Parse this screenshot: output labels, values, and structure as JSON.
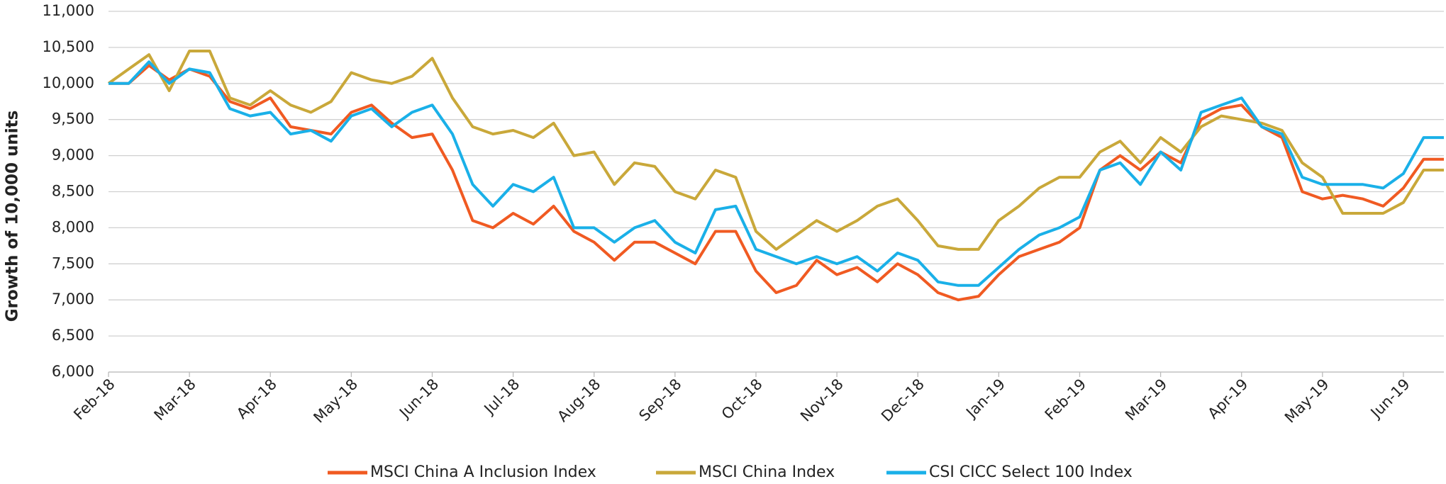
{
  "chart_data": {
    "type": "line",
    "y_label": "Growth of 10,000 units",
    "categories": [
      "Feb-18",
      null,
      null,
      null,
      "Mar-18",
      null,
      null,
      null,
      "Apr-18",
      null,
      null,
      null,
      "May-18",
      null,
      null,
      null,
      "Jun-18",
      null,
      null,
      null,
      "Jul-18",
      null,
      null,
      null,
      "Aug-18",
      null,
      null,
      null,
      "Sep-18",
      null,
      null,
      null,
      "Oct-18",
      null,
      null,
      null,
      "Nov-18",
      null,
      null,
      null,
      "Dec-18",
      null,
      null,
      null,
      "Jan-19",
      null,
      null,
      null,
      "Feb-19",
      null,
      null,
      null,
      "Mar-19",
      null,
      null,
      null,
      "Apr-19",
      null,
      null,
      null,
      "May-19",
      null,
      null,
      null,
      "Jun-19",
      null,
      null
    ],
    "series": [
      {
        "name": "MSCI China A Inclusion Index",
        "color": "#f05a22",
        "values": [
          10000,
          10000,
          10250,
          10050,
          10200,
          10100,
          9750,
          9650,
          9800,
          9400,
          9350,
          9300,
          9600,
          9700,
          9450,
          9250,
          9300,
          8800,
          8100,
          8000,
          8200,
          8050,
          8300,
          7950,
          7800,
          7550,
          7800,
          7800,
          7650,
          7500,
          7950,
          7950,
          7400,
          7100,
          7200,
          7550,
          7350,
          7450,
          7250,
          7500,
          7350,
          7100,
          7000,
          7050,
          7350,
          7600,
          7700,
          7800,
          8000,
          8800,
          9000,
          8800,
          9050,
          8900,
          9500,
          9650,
          9700,
          9400,
          9250,
          8500,
          8400,
          8450,
          8400,
          8300,
          8550,
          8950,
          8950
        ]
      },
      {
        "name": "MSCI China Index",
        "color": "#c9a83a",
        "values": [
          10000,
          10200,
          10400,
          9900,
          10450,
          10450,
          9800,
          9700,
          9900,
          9700,
          9600,
          9750,
          10150,
          10050,
          10000,
          10100,
          10350,
          9800,
          9400,
          9300,
          9350,
          9250,
          9450,
          9000,
          9050,
          8600,
          8900,
          8850,
          8500,
          8400,
          8800,
          8700,
          7950,
          7700,
          7900,
          8100,
          7950,
          8100,
          8300,
          8400,
          8100,
          7750,
          7700,
          7700,
          8100,
          8300,
          8550,
          8700,
          8700,
          9050,
          9200,
          8900,
          9250,
          9050,
          9400,
          9550,
          9500,
          9450,
          9350,
          8900,
          8700,
          8200,
          8200,
          8200,
          8350,
          8800,
          8800
        ]
      },
      {
        "name": "CSI CICC Select 100 Index",
        "color": "#1ab0e8",
        "values": [
          10000,
          10000,
          10300,
          10000,
          10200,
          10150,
          9650,
          9550,
          9600,
          9300,
          9350,
          9200,
          9550,
          9650,
          9400,
          9600,
          9700,
          9300,
          8600,
          8300,
          8600,
          8500,
          8700,
          8000,
          8000,
          7800,
          8000,
          8100,
          7800,
          7650,
          8250,
          8300,
          7700,
          7600,
          7500,
          7600,
          7500,
          7600,
          7400,
          7650,
          7550,
          7250,
          7200,
          7200,
          7450,
          7700,
          7900,
          8000,
          8150,
          8800,
          8900,
          8600,
          9050,
          8800,
          9600,
          9700,
          9800,
          9400,
          9300,
          8700,
          8600,
          8600,
          8600,
          8550,
          8750,
          9250,
          9250
        ]
      }
    ],
    "ylim": [
      6000,
      11000
    ],
    "yticks": [
      {
        "value": 6000,
        "label": "6,000"
      },
      {
        "value": 6500,
        "label": "6,500"
      },
      {
        "value": 7000,
        "label": "7,000"
      },
      {
        "value": 7500,
        "label": "7,500"
      },
      {
        "value": 8000,
        "label": "8,000"
      },
      {
        "value": 8500,
        "label": "8,500"
      },
      {
        "value": 9000,
        "label": "9,000"
      },
      {
        "value": 9500,
        "label": "9,500"
      },
      {
        "value": 10000,
        "label": "10,000"
      },
      {
        "value": 10500,
        "label": "10,500"
      },
      {
        "value": 11000,
        "label": "11,000"
      }
    ],
    "grid": true
  }
}
